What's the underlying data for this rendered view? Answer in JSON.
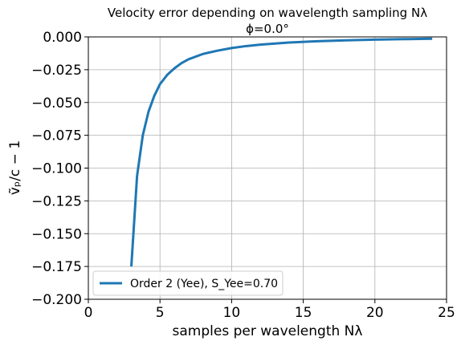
{
  "chart_data": {
    "type": "line",
    "title": "Velocity error depending on wavelength sampling Nλ",
    "subtitle": "ϕ=0.0°",
    "xlabel": "samples per wavelength Nλ",
    "ylabel": "ṽₚ/c − 1",
    "xlim": [
      0,
      25
    ],
    "ylim": [
      -0.2,
      0.0
    ],
    "xticks": [
      0,
      5,
      10,
      15,
      20,
      25
    ],
    "xtick_labels": [
      "0",
      "5",
      "10",
      "15",
      "20",
      "25"
    ],
    "yticks": [
      0.0,
      -0.025,
      -0.05,
      -0.075,
      -0.1,
      -0.125,
      -0.15,
      -0.175,
      -0.2
    ],
    "ytick_labels": [
      "0.000",
      "−0.025",
      "−0.050",
      "−0.075",
      "−0.100",
      "−0.125",
      "−0.150",
      "−0.175",
      "−0.200"
    ],
    "grid": true,
    "legend_position": "lower-left",
    "series": [
      {
        "name": "Order 2 (Yee), S_Yee=0.70",
        "color": "#1f77b4",
        "x": [
          3.0,
          3.4,
          3.8,
          4.2,
          4.6,
          5.0,
          5.5,
          6.0,
          6.5,
          7.0,
          8.0,
          9.0,
          10.0,
          11.0,
          12.0,
          14.0,
          16.0,
          18.0,
          20.0,
          22.0,
          24.0
        ],
        "y": [
          -0.175,
          -0.106,
          -0.075,
          -0.057,
          -0.045,
          -0.036,
          -0.029,
          -0.024,
          -0.02,
          -0.017,
          -0.013,
          -0.0105,
          -0.0085,
          -0.007,
          -0.0059,
          -0.0043,
          -0.0033,
          -0.0026,
          -0.0021,
          -0.0017,
          -0.0014
        ]
      }
    ]
  }
}
